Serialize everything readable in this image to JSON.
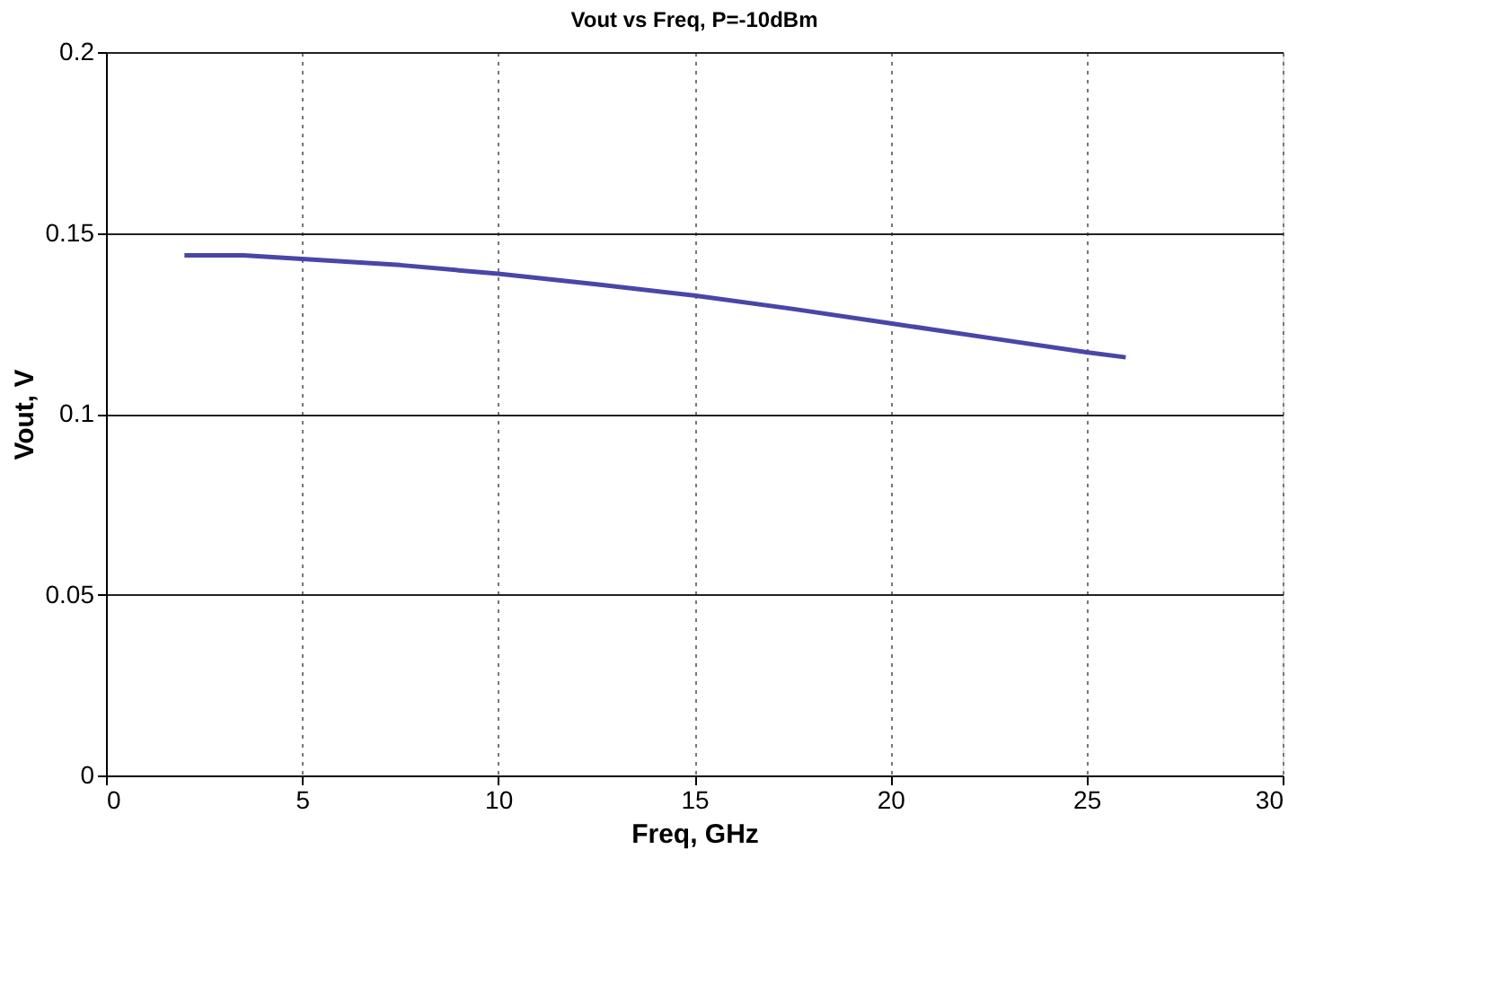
{
  "chart_data": {
    "type": "line",
    "title": "Vout vs Freq, P=-10dBm",
    "xlabel": "Freq, GHz",
    "ylabel": "Vout, V",
    "x": [
      2,
      3.5,
      5,
      7.5,
      10,
      12.5,
      15,
      17.5,
      20,
      22.5,
      25,
      26
    ],
    "series": [
      {
        "color": "#4a46a8",
        "values": [
          0.1438,
          0.1438,
          0.1428,
          0.1411,
          0.1387,
          0.1358,
          0.1327,
          0.129,
          0.125,
          0.121,
          0.117,
          0.1156
        ]
      }
    ],
    "xlim": [
      0,
      30
    ],
    "xticks": [
      0,
      5,
      10,
      15,
      20,
      25,
      30
    ],
    "ylim": [
      0,
      0.2
    ],
    "yticks": [
      0,
      0.05,
      0.1,
      0.15,
      0.2
    ],
    "grid": true,
    "marker": "none",
    "line_style": "solid",
    "legend": false
  }
}
